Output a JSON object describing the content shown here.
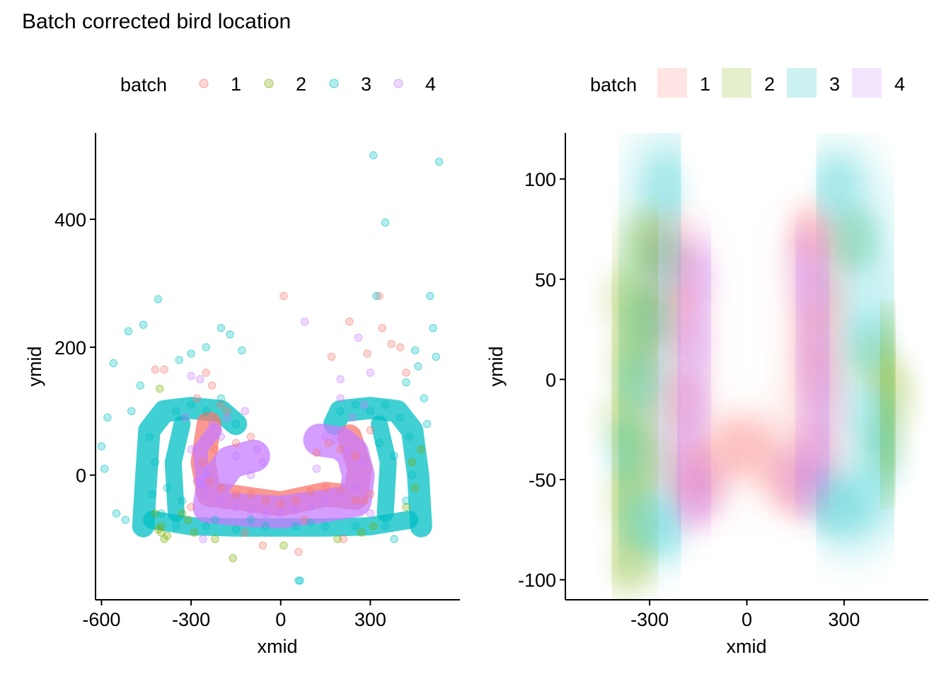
{
  "title": "Batch corrected bird location",
  "colors": {
    "1": "#F8766D",
    "2": "#7CAE00",
    "3": "#00BFC4",
    "4": "#C77CFF"
  },
  "chart_data": [
    {
      "type": "scatter",
      "legend": {
        "title": "batch",
        "position": "top",
        "labels": [
          "1",
          "2",
          "3",
          "4"
        ]
      },
      "xlabel": "xmid",
      "ylabel": "ymid",
      "xlim": [
        -620,
        600
      ],
      "ylim": [
        -195,
        535
      ],
      "xticks": [
        -600,
        -300,
        0,
        300
      ],
      "xtick_labels": [
        "-600",
        "-300",
        "0",
        "300"
      ],
      "yticks": [
        0,
        200,
        400
      ],
      "ytick_labels": [
        "0",
        "200",
        "400"
      ],
      "series": [
        {
          "name": "1",
          "points": [
            [
              -280,
              120
            ],
            [
              -250,
              160
            ],
            [
              -230,
              140
            ],
            [
              -200,
              110
            ],
            [
              -180,
              100
            ],
            [
              -240,
              -10
            ],
            [
              -200,
              -20
            ],
            [
              -150,
              -30
            ],
            [
              -100,
              -30
            ],
            [
              -50,
              -40
            ],
            [
              0,
              -45
            ],
            [
              50,
              -40
            ],
            [
              100,
              -25
            ],
            [
              150,
              -20
            ],
            [
              200,
              -25
            ],
            [
              250,
              -40
            ],
            [
              300,
              -30
            ],
            [
              330,
              280
            ],
            [
              10,
              280
            ],
            [
              170,
              185
            ],
            [
              230,
              240
            ],
            [
              290,
              190
            ],
            [
              370,
              205
            ],
            [
              400,
              200
            ],
            [
              420,
              160
            ],
            [
              -420,
              165
            ],
            [
              -390,
              165
            ],
            [
              340,
              230
            ],
            [
              210,
              -100
            ],
            [
              -60,
              -110
            ],
            [
              60,
              -120
            ],
            [
              -220,
              40
            ],
            [
              -260,
              20
            ],
            [
              160,
              50
            ],
            [
              200,
              40
            ],
            [
              250,
              30
            ],
            [
              300,
              70
            ],
            [
              -100,
              60
            ],
            [
              -150,
              50
            ],
            [
              120,
              35
            ],
            [
              280,
              -40
            ],
            [
              -300,
              -50
            ],
            [
              -120,
              -90
            ],
            [
              80,
              -70
            ]
          ]
        },
        {
          "name": "2",
          "points": [
            [
              -400,
              -90
            ],
            [
              -390,
              -100
            ],
            [
              -380,
              -95
            ],
            [
              -410,
              -85
            ],
            [
              -400,
              -80
            ],
            [
              -405,
              135
            ],
            [
              -160,
              -130
            ],
            [
              10,
              -110
            ],
            [
              190,
              -100
            ],
            [
              -330,
              -60
            ],
            [
              -310,
              -70
            ],
            [
              310,
              -80
            ],
            [
              450,
              -20
            ],
            [
              440,
              20
            ],
            [
              470,
              40
            ],
            [
              420,
              -50
            ],
            [
              -420,
              -60
            ],
            [
              -290,
              -90
            ],
            [
              270,
              -90
            ],
            [
              -220,
              -100
            ]
          ]
        },
        {
          "name": "3",
          "points": [
            [
              310,
              500
            ],
            [
              530,
              490
            ],
            [
              350,
              395
            ],
            [
              -410,
              275
            ],
            [
              -510,
              225
            ],
            [
              -460,
              235
            ],
            [
              -340,
              180
            ],
            [
              -300,
              190
            ],
            [
              -250,
              200
            ],
            [
              -200,
              230
            ],
            [
              -170,
              220
            ],
            [
              -130,
              195
            ],
            [
              -560,
              175
            ],
            [
              -580,
              90
            ],
            [
              -600,
              45
            ],
            [
              -590,
              10
            ],
            [
              -550,
              -60
            ],
            [
              -520,
              -70
            ],
            [
              420,
              145
            ],
            [
              460,
              170
            ],
            [
              510,
              230
            ],
            [
              520,
              185
            ],
            [
              500,
              280
            ],
            [
              450,
              195
            ],
            [
              320,
              280
            ],
            [
              60,
              -165
            ],
            [
              65,
              -165
            ],
            [
              -440,
              60
            ],
            [
              -420,
              20
            ],
            [
              -430,
              -30
            ],
            [
              -400,
              -60
            ],
            [
              -350,
              100
            ],
            [
              -300,
              110
            ],
            [
              -250,
              100
            ],
            [
              -200,
              120
            ],
            [
              -150,
              80
            ],
            [
              -350,
              -80
            ],
            [
              -250,
              -80
            ],
            [
              -150,
              -85
            ],
            [
              -50,
              -80
            ],
            [
              50,
              -80
            ],
            [
              150,
              -80
            ],
            [
              250,
              -80
            ],
            [
              350,
              -80
            ],
            [
              420,
              -40
            ],
            [
              440,
              0
            ],
            [
              430,
              60
            ],
            [
              400,
              90
            ],
            [
              350,
              110
            ],
            [
              300,
              100
            ],
            [
              250,
              110
            ],
            [
              200,
              100
            ],
            [
              380,
              30
            ],
            [
              330,
              50
            ],
            [
              -380,
              -20
            ],
            [
              -330,
              -40
            ],
            [
              -220,
              -70
            ],
            [
              -100,
              -70
            ],
            [
              100,
              -75
            ],
            [
              380,
              -100
            ],
            [
              -470,
              140
            ],
            [
              480,
              120
            ],
            [
              -500,
              100
            ],
            [
              490,
              80
            ]
          ]
        },
        {
          "name": "4",
          "points": [
            [
              80,
              240
            ],
            [
              260,
              215
            ],
            [
              -300,
              155
            ],
            [
              -270,
              150
            ],
            [
              200,
              150
            ],
            [
              300,
              160
            ],
            [
              -260,
              -100
            ],
            [
              -200,
              60
            ],
            [
              -150,
              30
            ],
            [
              -100,
              0
            ],
            [
              -80,
              40
            ],
            [
              -250,
              -30
            ],
            [
              -200,
              -40
            ],
            [
              -150,
              -50
            ],
            [
              -100,
              -55
            ],
            [
              -50,
              -60
            ],
            [
              0,
              -60
            ],
            [
              50,
              -55
            ],
            [
              100,
              -50
            ],
            [
              150,
              -40
            ],
            [
              200,
              -30
            ],
            [
              250,
              -20
            ],
            [
              270,
              20
            ],
            [
              220,
              40
            ],
            [
              180,
              55
            ],
            [
              150,
              60
            ],
            [
              -280,
              -10
            ],
            [
              -230,
              80
            ],
            [
              -180,
              90
            ],
            [
              -120,
              100
            ],
            [
              200,
              120
            ],
            [
              280,
              110
            ],
            [
              -300,
              40
            ],
            [
              300,
              -60
            ],
            [
              -320,
              90
            ],
            [
              240,
              90
            ],
            [
              -60,
              20
            ],
            [
              120,
              10
            ]
          ]
        }
      ]
    },
    {
      "type": "density",
      "legend": {
        "title": "batch",
        "position": "top",
        "labels": [
          "1",
          "2",
          "3",
          "4"
        ]
      },
      "xlabel": "xmid",
      "ylabel": "ymid",
      "xlim": [
        -560,
        560
      ],
      "ylim": [
        -110,
        123
      ],
      "xticks": [
        -300,
        0,
        300
      ],
      "xtick_labels": [
        "-300",
        "0",
        "300"
      ],
      "yticks": [
        -100,
        -50,
        0,
        50,
        100
      ],
      "ytick_labels": [
        "-100",
        "-50",
        "0",
        "50",
        "100"
      ],
      "series": [
        {
          "name": "1",
          "points": [
            [
              -230,
              70
            ],
            [
              -215,
              30
            ],
            [
              -205,
              -10
            ],
            [
              -190,
              -45
            ],
            [
              -155,
              -60
            ],
            [
              -120,
              -45
            ],
            [
              -60,
              -35
            ],
            [
              0,
              -32
            ],
            [
              60,
              -40
            ],
            [
              120,
              -52
            ],
            [
              165,
              -55
            ],
            [
              200,
              -35
            ],
            [
              215,
              0
            ],
            [
              220,
              40
            ],
            [
              215,
              70
            ],
            [
              190,
              75
            ],
            [
              -210,
              50
            ],
            [
              210,
              20
            ]
          ]
        },
        {
          "name": "2",
          "points": [
            [
              -390,
              40
            ],
            [
              -370,
              10
            ],
            [
              -395,
              -20
            ],
            [
              -380,
              -60
            ],
            [
              -360,
              -90
            ],
            [
              -300,
              70
            ],
            [
              -310,
              30
            ],
            [
              -330,
              -40
            ],
            [
              330,
              70
            ],
            [
              390,
              10
            ],
            [
              430,
              -30
            ],
            [
              460,
              -10
            ],
            [
              440,
              0
            ]
          ]
        },
        {
          "name": "3",
          "points": [
            [
              -250,
              95
            ],
            [
              -255,
              60
            ],
            [
              -300,
              30
            ],
            [
              -330,
              0
            ],
            [
              -380,
              -35
            ],
            [
              -320,
              -70
            ],
            [
              -250,
              -75
            ],
            [
              280,
              95
            ],
            [
              340,
              70
            ],
            [
              380,
              20
            ],
            [
              400,
              -20
            ],
            [
              420,
              -40
            ],
            [
              360,
              -60
            ],
            [
              290,
              -65
            ],
            [
              240,
              -60
            ]
          ]
        },
        {
          "name": "4",
          "points": [
            [
              -150,
              50
            ],
            [
              -170,
              20
            ],
            [
              -180,
              -10
            ],
            [
              -200,
              -35
            ],
            [
              -180,
              -60
            ],
            [
              -120,
              -55
            ],
            [
              180,
              60
            ],
            [
              200,
              40
            ],
            [
              220,
              10
            ],
            [
              240,
              -15
            ],
            [
              230,
              -40
            ],
            [
              180,
              -55
            ],
            [
              140,
              -45
            ]
          ]
        }
      ]
    }
  ]
}
